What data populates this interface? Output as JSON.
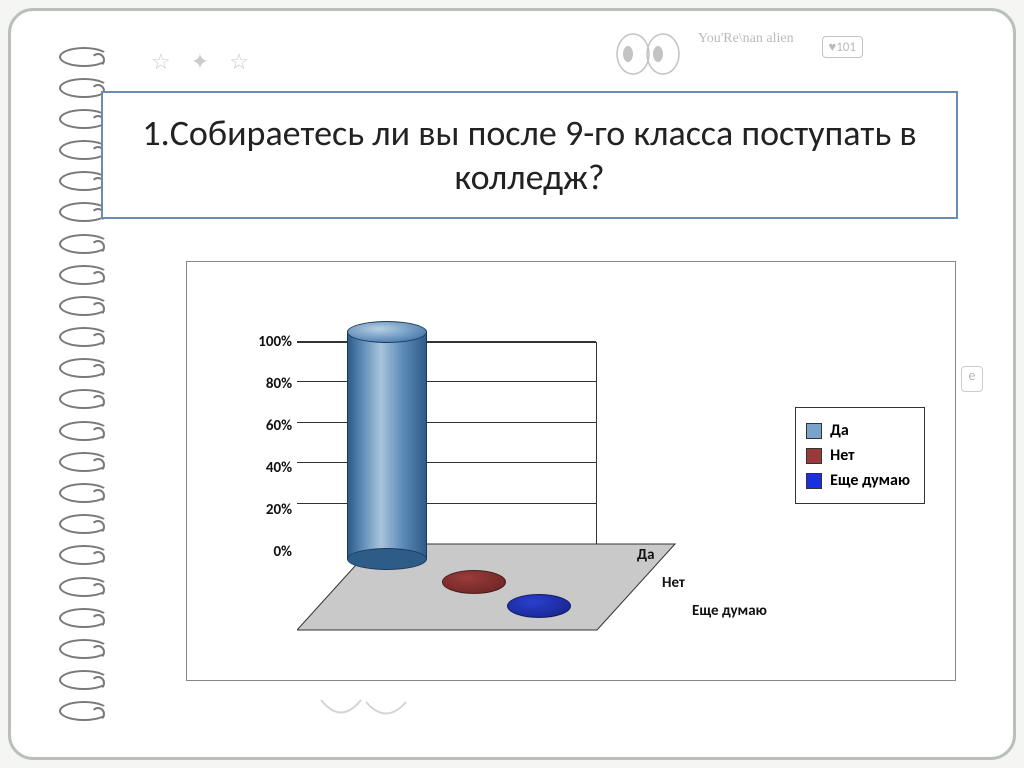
{
  "doodles": {
    "badge_text": "♥101",
    "alien_text": "You'Re\\nan alien",
    "bottom_text": "⌣"
  },
  "title": "1.Собираетесь ли вы после 9-го класса поступать в колледж?",
  "title_fontsize": 36,
  "title_border_color": "#6a8bb5",
  "chart": {
    "type": "3d-cylinder-bar",
    "background_color": "#ffffff",
    "border_color": "#888888",
    "y_axis": {
      "min": 0,
      "max": 100,
      "step": 20,
      "ticks": [
        "0%",
        "20%",
        "40%",
        "60%",
        "80%",
        "100%"
      ],
      "font_size": 15,
      "font_weight": "bold"
    },
    "floor": {
      "fill": "#c9c9c9",
      "stroke": "#333333"
    },
    "series": [
      {
        "label": "Да",
        "value": 108,
        "color_main": "#5d8bb8",
        "color_dark": "#2e5c88",
        "legend_swatch": "#7aa3c9",
        "disc_color": "#4d7aa8"
      },
      {
        "label": "Нет",
        "value": 2,
        "color_main": "#9a3b3b",
        "color_dark": "#6b2424",
        "legend_swatch": "#9a3b3b",
        "disc_color": "#8a3434"
      },
      {
        "label": "Еще думаю",
        "value": 3,
        "color_main": "#2a3fd0",
        "color_dark": "#17248a",
        "legend_swatch": "#1a2fe0",
        "disc_color": "#2236c8"
      }
    ],
    "depth_labels": [
      "Да",
      "Нет",
      "Еще думаю"
    ],
    "legend_border_color": "#333333",
    "legend_font_size": 16
  },
  "frame": {
    "border_color": "#b8c0b8",
    "border_radius": 25
  }
}
